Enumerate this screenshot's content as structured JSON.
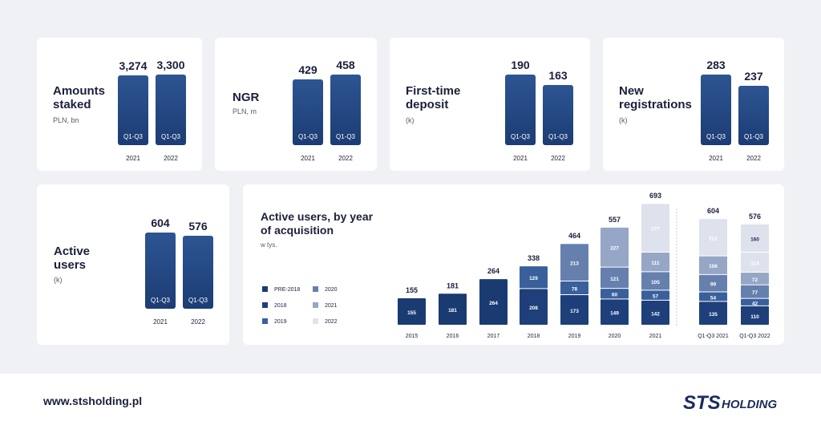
{
  "colors": {
    "PRE-2018": "#1a3a72",
    "2018": "#1e3f7a",
    "2019": "#39609b",
    "2020": "#6680ae",
    "2021": "#96a6c6",
    "2022": "#dde2ec"
  },
  "kpis": [
    {
      "title": "Amounts staked",
      "unit": "PLN, bn",
      "bars": [
        {
          "value": 3274,
          "label": "3,274",
          "inner": "Q1-Q3",
          "year": "2021"
        },
        {
          "value": 3300,
          "label": "3,300",
          "inner": "Q1-Q3",
          "year": "2022"
        }
      ]
    },
    {
      "title": "NGR",
      "unit": "PLN, m",
      "bars": [
        {
          "value": 429,
          "label": "429",
          "inner": "Q1-Q3",
          "year": "2021"
        },
        {
          "value": 458,
          "label": "458",
          "inner": "Q1-Q3",
          "year": "2022"
        }
      ]
    },
    {
      "title": "First-time deposit",
      "unit": "(k)",
      "bars": [
        {
          "value": 190,
          "label": "190",
          "inner": "Q1-Q3",
          "year": "2021"
        },
        {
          "value": 163,
          "label": "163",
          "inner": "Q1-Q3",
          "year": "2022"
        }
      ]
    },
    {
      "title": "New registrations",
      "unit": "(k)",
      "bars": [
        {
          "value": 283,
          "label": "283",
          "inner": "Q1-Q3",
          "year": "2021"
        },
        {
          "value": 237,
          "label": "237",
          "inner": "Q1-Q3",
          "year": "2022"
        }
      ]
    },
    {
      "title": "Active users",
      "unit": "(k)",
      "bars": [
        {
          "value": 604,
          "label": "604",
          "inner": "Q1-Q3",
          "year": "2021"
        },
        {
          "value": 576,
          "label": "576",
          "inner": "Q1-Q3",
          "year": "2022"
        }
      ]
    }
  ],
  "chart_data": {
    "type": "bar",
    "stacked": true,
    "title": "Active users, by year of acquisition",
    "subtitle": "w tys.",
    "categories": [
      "2015",
      "2016",
      "2017",
      "2018",
      "2019",
      "2020",
      "2021",
      "Q1-Q3 2021",
      "Q1-Q3 2022"
    ],
    "totals": [
      155,
      181,
      264,
      338,
      464,
      557,
      693,
      604,
      576
    ],
    "legend": [
      "PRE-2018",
      "2020",
      "2018",
      "2021",
      "2019",
      "2022"
    ],
    "series": [
      {
        "name": "PRE-2018",
        "values": [
          155,
          181,
          264,
          null,
          null,
          null,
          null,
          null,
          null
        ]
      },
      {
        "name": "2018",
        "values": [
          null,
          null,
          null,
          208,
          173,
          149,
          142,
          135,
          110
        ]
      },
      {
        "name": "2019",
        "values": [
          null,
          null,
          null,
          129,
          78,
          60,
          57,
          54,
          42
        ]
      },
      {
        "name": "2020",
        "values": [
          null,
          null,
          null,
          null,
          213,
          121,
          105,
          99,
          77
        ]
      },
      {
        "name": "2021",
        "values": [
          null,
          null,
          null,
          null,
          null,
          227,
          111,
          106,
          72
        ]
      },
      {
        "name": "2022",
        "values": [
          null,
          null,
          null,
          null,
          null,
          null,
          277,
          212,
          114
        ]
      },
      {
        "name": "",
        "values": [
          null,
          null,
          null,
          null,
          null,
          null,
          null,
          null,
          160
        ]
      }
    ]
  },
  "footer": {
    "url": "www.stsholding.pl",
    "logo_text": "HOLDING",
    "logo_mark": "STS"
  }
}
